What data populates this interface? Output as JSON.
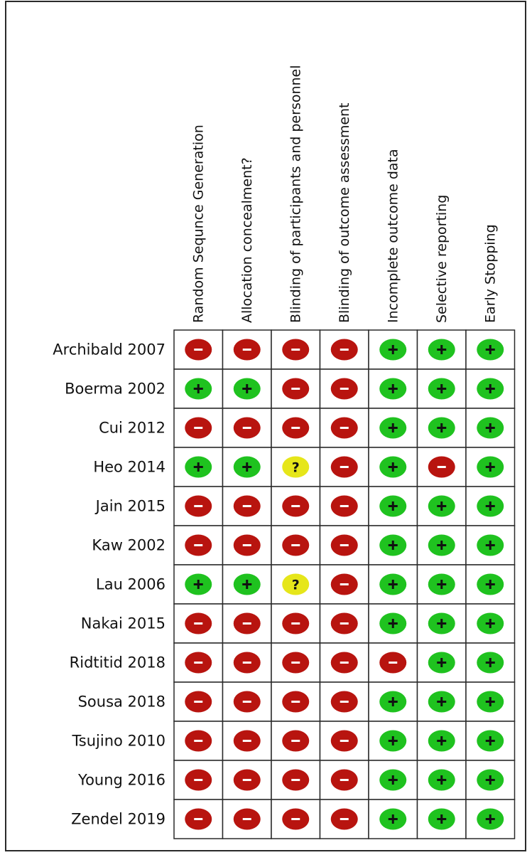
{
  "chart_data": {
    "type": "table",
    "columns": [
      "Random Sequnce Generation",
      "Allocation concealment?",
      "Blinding of participants and personnel",
      "Blinding of outcome assessment",
      "Incomplete outcome data",
      "Selective reporting",
      "Early Stopping"
    ],
    "rows": [
      {
        "study": "Archibald 2007",
        "judgements": [
          "high",
          "high",
          "high",
          "high",
          "low",
          "low",
          "low"
        ]
      },
      {
        "study": "Boerma 2002",
        "judgements": [
          "low",
          "low",
          "high",
          "high",
          "low",
          "low",
          "low"
        ]
      },
      {
        "study": "Cui 2012",
        "judgements": [
          "high",
          "high",
          "high",
          "high",
          "low",
          "low",
          "low"
        ]
      },
      {
        "study": "Heo 2014",
        "judgements": [
          "low",
          "low",
          "unclear",
          "high",
          "low",
          "high",
          "low"
        ]
      },
      {
        "study": "Jain 2015",
        "judgements": [
          "high",
          "high",
          "high",
          "high",
          "low",
          "low",
          "low"
        ]
      },
      {
        "study": "Kaw 2002",
        "judgements": [
          "high",
          "high",
          "high",
          "high",
          "low",
          "low",
          "low"
        ]
      },
      {
        "study": "Lau 2006",
        "judgements": [
          "low",
          "low",
          "unclear",
          "high",
          "low",
          "low",
          "low"
        ]
      },
      {
        "study": "Nakai 2015",
        "judgements": [
          "high",
          "high",
          "high",
          "high",
          "low",
          "low",
          "low"
        ]
      },
      {
        "study": "Ridtitid 2018",
        "judgements": [
          "high",
          "high",
          "high",
          "high",
          "high",
          "low",
          "low"
        ]
      },
      {
        "study": "Sousa 2018",
        "judgements": [
          "high",
          "high",
          "high",
          "high",
          "low",
          "low",
          "low"
        ]
      },
      {
        "study": "Tsujino 2010",
        "judgements": [
          "high",
          "high",
          "high",
          "high",
          "low",
          "low",
          "low"
        ]
      },
      {
        "study": "Young 2016",
        "judgements": [
          "high",
          "high",
          "high",
          "high",
          "low",
          "low",
          "low"
        ]
      },
      {
        "study": "Zendel 2019",
        "judgements": [
          "high",
          "high",
          "high",
          "high",
          "low",
          "low",
          "low"
        ]
      }
    ],
    "legend": {
      "low": {
        "symbol": "+",
        "color": "#1fc21f"
      },
      "high": {
        "symbol": "−",
        "color": "#b8140f"
      },
      "unclear": {
        "symbol": "?",
        "color": "#e6e61a"
      }
    }
  }
}
